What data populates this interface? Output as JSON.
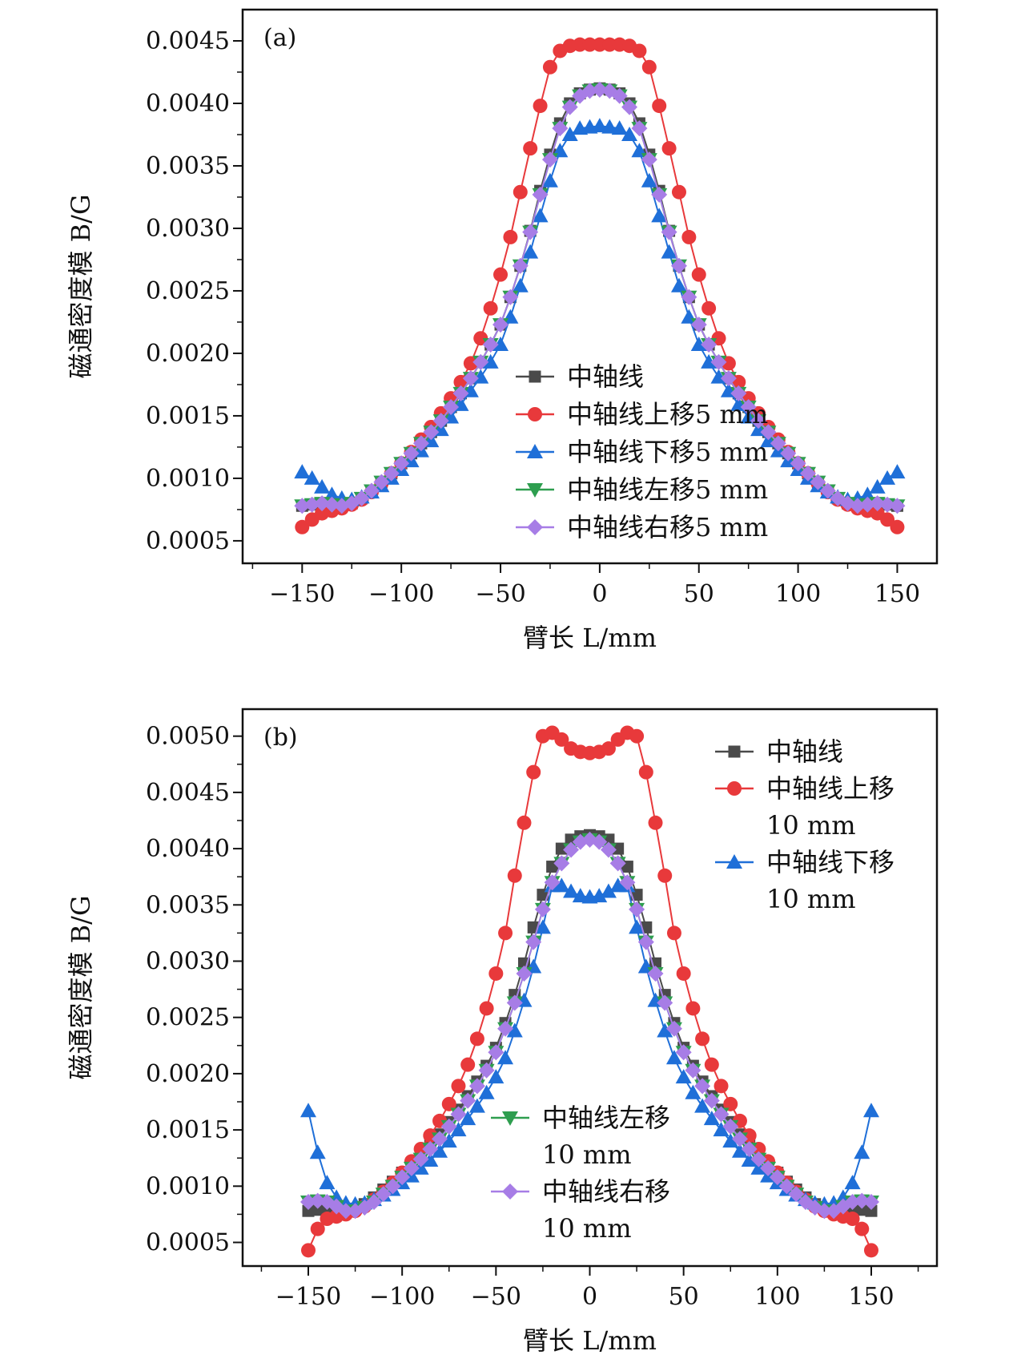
{
  "chart_data": [
    {
      "type": "line",
      "panel_label": "(a)",
      "xlabel": "臂长 L/mm",
      "ylabel": "磁通密度模 B/G",
      "xlim": [
        -180,
        170
      ],
      "ylim": [
        0.00032,
        0.00475
      ],
      "xticks": [
        -150,
        -100,
        -50,
        0,
        50,
        100,
        150
      ],
      "xtick_labels": [
        "−150",
        "−100",
        "−50",
        "0",
        "50",
        "100",
        "150"
      ],
      "yticks": [
        0.0005,
        0.001,
        0.0015,
        0.002,
        0.0025,
        0.003,
        0.0035,
        0.004,
        0.0045
      ],
      "ytick_labels": [
        "0.0005",
        "0.0010",
        "0.0015",
        "0.0020",
        "0.0025",
        "0.0030",
        "0.0035",
        "0.0040",
        "0.0045"
      ],
      "legend_position": "lower-center",
      "x": [
        -150,
        -145,
        -140,
        -135,
        -130,
        -125,
        -120,
        -115,
        -110,
        -105,
        -100,
        -95,
        -90,
        -85,
        -80,
        -75,
        -70,
        -65,
        -60,
        -55,
        -50,
        -45,
        -40,
        -35,
        -30,
        -25,
        -20,
        -15,
        -10,
        -5,
        0,
        5,
        10,
        15,
        20,
        25,
        30,
        35,
        40,
        45,
        50,
        55,
        60,
        65,
        70,
        75,
        80,
        85,
        90,
        95,
        100,
        105,
        110,
        115,
        120,
        125,
        130,
        135,
        140,
        145,
        150
      ],
      "series": [
        {
          "name": "中轴线",
          "marker": "square",
          "color": "#4a4a4a",
          "values": [
            0.00078,
            0.00079,
            0.00079,
            0.00078,
            0.00078,
            0.0008,
            0.00084,
            0.0009,
            0.00097,
            0.00104,
            0.00112,
            0.0012,
            0.00128,
            0.00137,
            0.00146,
            0.00157,
            0.00168,
            0.0018,
            0.00193,
            0.00207,
            0.00223,
            0.00245,
            0.0027,
            0.00298,
            0.0033,
            0.00359,
            0.00384,
            0.004,
            0.00408,
            0.00411,
            0.00412,
            0.00411,
            0.00408,
            0.004,
            0.00384,
            0.00359,
            0.0033,
            0.00298,
            0.0027,
            0.00245,
            0.00223,
            0.00207,
            0.00193,
            0.0018,
            0.00168,
            0.00157,
            0.00146,
            0.00137,
            0.00128,
            0.0012,
            0.00112,
            0.00104,
            0.00097,
            0.0009,
            0.00084,
            0.0008,
            0.00078,
            0.00078,
            0.00079,
            0.00079,
            0.00078
          ]
        },
        {
          "name": "中轴线上移5 mm",
          "marker": "circle",
          "color": "#e8393b",
          "values": [
            0.00061,
            0.00067,
            0.00072,
            0.00074,
            0.00076,
            0.00079,
            0.00083,
            0.00089,
            0.00096,
            0.00104,
            0.00112,
            0.00121,
            0.00131,
            0.00141,
            0.00152,
            0.00164,
            0.00177,
            0.00192,
            0.00212,
            0.00236,
            0.00263,
            0.00293,
            0.00329,
            0.00364,
            0.00398,
            0.00429,
            0.00442,
            0.00446,
            0.00447,
            0.00447,
            0.00447,
            0.00447,
            0.00447,
            0.00446,
            0.00442,
            0.00429,
            0.00398,
            0.00364,
            0.00329,
            0.00293,
            0.00263,
            0.00236,
            0.00212,
            0.00192,
            0.00177,
            0.00164,
            0.00152,
            0.00141,
            0.00131,
            0.00121,
            0.00112,
            0.00104,
            0.00096,
            0.00089,
            0.00083,
            0.00079,
            0.00076,
            0.00074,
            0.00072,
            0.00067,
            0.00061
          ]
        },
        {
          "name": "中轴线下移5 mm",
          "marker": "triangle-up",
          "color": "#1f6fd8",
          "values": [
            0.00105,
            0.001,
            0.00093,
            0.00087,
            0.00084,
            0.00083,
            0.00085,
            0.00089,
            0.00094,
            0.001,
            0.00107,
            0.00114,
            0.00122,
            0.0013,
            0.00139,
            0.00149,
            0.00159,
            0.0017,
            0.00181,
            0.00193,
            0.00207,
            0.00229,
            0.00254,
            0.00281,
            0.0031,
            0.00338,
            0.00362,
            0.00375,
            0.0038,
            0.00381,
            0.00382,
            0.00381,
            0.0038,
            0.00375,
            0.00362,
            0.00338,
            0.0031,
            0.00281,
            0.00254,
            0.00229,
            0.00207,
            0.00193,
            0.00181,
            0.0017,
            0.00159,
            0.00149,
            0.00139,
            0.0013,
            0.00122,
            0.00114,
            0.00107,
            0.001,
            0.00094,
            0.00089,
            0.00085,
            0.00083,
            0.00084,
            0.00087,
            0.00093,
            0.001,
            0.00105
          ]
        },
        {
          "name": "中轴线左移5 mm",
          "marker": "triangle-down",
          "color": "#2e9e4f",
          "values": [
            0.00078,
            0.00079,
            0.0008,
            0.00079,
            0.00078,
            0.0008,
            0.00084,
            0.0009,
            0.00097,
            0.00104,
            0.00112,
            0.0012,
            0.00128,
            0.00137,
            0.00146,
            0.00157,
            0.00168,
            0.0018,
            0.00193,
            0.00207,
            0.00223,
            0.00245,
            0.0027,
            0.00297,
            0.00327,
            0.00355,
            0.0038,
            0.00397,
            0.00406,
            0.0041,
            0.00411,
            0.0041,
            0.00406,
            0.00397,
            0.0038,
            0.00355,
            0.00327,
            0.00297,
            0.0027,
            0.00245,
            0.00223,
            0.00207,
            0.00193,
            0.0018,
            0.00168,
            0.00157,
            0.00146,
            0.00137,
            0.00128,
            0.0012,
            0.00112,
            0.00104,
            0.00097,
            0.0009,
            0.00084,
            0.0008,
            0.00078,
            0.00079,
            0.0008,
            0.00079,
            0.00078
          ]
        },
        {
          "name": "中轴线右移5 mm",
          "marker": "diamond",
          "color": "#a77de6",
          "values": [
            0.00078,
            0.00079,
            0.0008,
            0.00079,
            0.00078,
            0.0008,
            0.00084,
            0.0009,
            0.00097,
            0.00104,
            0.00112,
            0.0012,
            0.00128,
            0.00137,
            0.00146,
            0.00157,
            0.00168,
            0.0018,
            0.00193,
            0.00207,
            0.00223,
            0.00245,
            0.0027,
            0.00297,
            0.00327,
            0.00355,
            0.0038,
            0.00397,
            0.00406,
            0.0041,
            0.00411,
            0.0041,
            0.00406,
            0.00397,
            0.0038,
            0.00355,
            0.00327,
            0.00297,
            0.0027,
            0.00245,
            0.00223,
            0.00207,
            0.00193,
            0.0018,
            0.00168,
            0.00157,
            0.00146,
            0.00137,
            0.00128,
            0.0012,
            0.00112,
            0.00104,
            0.00097,
            0.0009,
            0.00084,
            0.0008,
            0.00078,
            0.00079,
            0.0008,
            0.00079,
            0.00078
          ]
        }
      ]
    },
    {
      "type": "line",
      "panel_label": "(b)",
      "xlabel": "臂长 L/mm",
      "ylabel": "磁通密度模 B/G",
      "xlim": [
        -185,
        185
      ],
      "ylim": [
        0.00029,
        0.00524
      ],
      "xticks": [
        -150,
        -100,
        -50,
        0,
        50,
        100,
        150
      ],
      "xtick_labels": [
        "−150",
        "−100",
        "−50",
        "0",
        "50",
        "100",
        "150"
      ],
      "yticks": [
        0.0005,
        0.001,
        0.0015,
        0.002,
        0.0025,
        0.003,
        0.0035,
        0.004,
        0.0045,
        0.005
      ],
      "ytick_labels": [
        "0.0005",
        "0.0010",
        "0.0015",
        "0.0020",
        "0.0025",
        "0.0030",
        "0.0035",
        "0.0040",
        "0.0045",
        "0.0050"
      ],
      "legend_position": "top-right and lower-center",
      "x": [
        -150,
        -145,
        -140,
        -135,
        -130,
        -125,
        -120,
        -115,
        -110,
        -105,
        -100,
        -95,
        -90,
        -85,
        -80,
        -75,
        -70,
        -65,
        -60,
        -55,
        -50,
        -45,
        -40,
        -35,
        -30,
        -25,
        -20,
        -15,
        -10,
        -5,
        0,
        5,
        10,
        15,
        20,
        25,
        30,
        35,
        40,
        45,
        50,
        55,
        60,
        65,
        70,
        75,
        80,
        85,
        90,
        95,
        100,
        105,
        110,
        115,
        120,
        125,
        130,
        135,
        140,
        145,
        150
      ],
      "series": [
        {
          "name": "中轴线",
          "legend_lines": [
            "中轴线"
          ],
          "marker": "square",
          "color": "#4a4a4a",
          "values": [
            0.00078,
            0.00079,
            0.00079,
            0.00078,
            0.00078,
            0.0008,
            0.00084,
            0.0009,
            0.00097,
            0.00104,
            0.00112,
            0.0012,
            0.00128,
            0.00137,
            0.00146,
            0.00157,
            0.00168,
            0.0018,
            0.00193,
            0.00207,
            0.00223,
            0.00245,
            0.0027,
            0.00298,
            0.0033,
            0.00359,
            0.00384,
            0.004,
            0.00408,
            0.00411,
            0.00412,
            0.00411,
            0.00408,
            0.004,
            0.00384,
            0.00359,
            0.0033,
            0.00298,
            0.0027,
            0.00245,
            0.00223,
            0.00207,
            0.00193,
            0.0018,
            0.00168,
            0.00157,
            0.00146,
            0.00137,
            0.00128,
            0.0012,
            0.00112,
            0.00104,
            0.00097,
            0.0009,
            0.00084,
            0.0008,
            0.00078,
            0.00078,
            0.00079,
            0.00079,
            0.00078
          ]
        },
        {
          "name": "中轴线上移10 mm",
          "legend_lines": [
            "中轴线上移",
            "10 mm"
          ],
          "marker": "circle",
          "color": "#e8393b",
          "values": [
            0.00043,
            0.00062,
            0.00071,
            0.00073,
            0.00075,
            0.00078,
            0.00082,
            0.00088,
            0.00095,
            0.00103,
            0.00112,
            0.00122,
            0.00133,
            0.00145,
            0.00158,
            0.00173,
            0.00189,
            0.00208,
            0.00231,
            0.00258,
            0.00289,
            0.00325,
            0.00376,
            0.00423,
            0.00468,
            0.005,
            0.00503,
            0.00497,
            0.00489,
            0.00486,
            0.00485,
            0.00486,
            0.00489,
            0.00497,
            0.00503,
            0.005,
            0.00468,
            0.00423,
            0.00376,
            0.00325,
            0.00289,
            0.00258,
            0.00231,
            0.00208,
            0.00189,
            0.00173,
            0.00158,
            0.00145,
            0.00133,
            0.00122,
            0.00112,
            0.00103,
            0.00095,
            0.00088,
            0.00082,
            0.00078,
            0.00075,
            0.00073,
            0.00071,
            0.00062,
            0.00043
          ]
        },
        {
          "name": "中轴线下移10 mm",
          "legend_lines": [
            "中轴线下移",
            "10 mm"
          ],
          "marker": "triangle-up",
          "color": "#1f6fd8",
          "values": [
            0.00167,
            0.0013,
            0.00103,
            0.0009,
            0.00085,
            0.00084,
            0.00085,
            0.00088,
            0.00092,
            0.00097,
            0.00103,
            0.00109,
            0.00116,
            0.00123,
            0.00131,
            0.0014,
            0.0015,
            0.0016,
            0.00171,
            0.00183,
            0.00197,
            0.00214,
            0.00238,
            0.00265,
            0.00295,
            0.0033,
            0.00367,
            0.00367,
            0.00362,
            0.00358,
            0.00357,
            0.00358,
            0.00362,
            0.00367,
            0.00367,
            0.0033,
            0.00295,
            0.00265,
            0.00238,
            0.00214,
            0.00197,
            0.00183,
            0.00171,
            0.0016,
            0.0015,
            0.0014,
            0.00131,
            0.00123,
            0.00116,
            0.00109,
            0.00103,
            0.00097,
            0.00092,
            0.00088,
            0.00085,
            0.00084,
            0.00085,
            0.0009,
            0.00103,
            0.0013,
            0.00167
          ]
        },
        {
          "name": "中轴线左移10 mm",
          "legend_lines": [
            "中轴线左移",
            "10 mm"
          ],
          "marker": "triangle-down",
          "color": "#2e9e4f",
          "values": [
            0.00086,
            0.00087,
            0.00086,
            0.00082,
            0.00078,
            0.00078,
            0.00081,
            0.00086,
            0.00093,
            0.001,
            0.00108,
            0.00116,
            0.00124,
            0.00133,
            0.00142,
            0.00153,
            0.00164,
            0.00176,
            0.00189,
            0.00203,
            0.00219,
            0.0024,
            0.00263,
            0.00289,
            0.00317,
            0.00346,
            0.0037,
            0.00387,
            0.00399,
            0.00406,
            0.00408,
            0.00406,
            0.00399,
            0.00387,
            0.0037,
            0.00346,
            0.00317,
            0.00289,
            0.00263,
            0.0024,
            0.00219,
            0.00203,
            0.00189,
            0.00176,
            0.00164,
            0.00153,
            0.00142,
            0.00133,
            0.00124,
            0.00116,
            0.00108,
            0.001,
            0.00093,
            0.00086,
            0.00081,
            0.00078,
            0.00078,
            0.00082,
            0.00086,
            0.00087,
            0.00086
          ]
        },
        {
          "name": "中轴线右移10 mm",
          "legend_lines": [
            "中轴线右移",
            "10 mm"
          ],
          "marker": "diamond",
          "color": "#a77de6",
          "values": [
            0.00086,
            0.00087,
            0.00086,
            0.00082,
            0.00078,
            0.00078,
            0.00081,
            0.00086,
            0.00093,
            0.001,
            0.00108,
            0.00116,
            0.00124,
            0.00133,
            0.00142,
            0.00153,
            0.00164,
            0.00176,
            0.00189,
            0.00203,
            0.00219,
            0.0024,
            0.00263,
            0.00289,
            0.00317,
            0.00346,
            0.0037,
            0.00387,
            0.00399,
            0.00406,
            0.00408,
            0.00406,
            0.00399,
            0.00387,
            0.0037,
            0.00346,
            0.00317,
            0.00289,
            0.00263,
            0.0024,
            0.00219,
            0.00203,
            0.00189,
            0.00176,
            0.00164,
            0.00153,
            0.00142,
            0.00133,
            0.00124,
            0.00116,
            0.00108,
            0.001,
            0.00093,
            0.00086,
            0.00081,
            0.00078,
            0.00078,
            0.00082,
            0.00086,
            0.00087,
            0.00086
          ]
        }
      ]
    }
  ]
}
